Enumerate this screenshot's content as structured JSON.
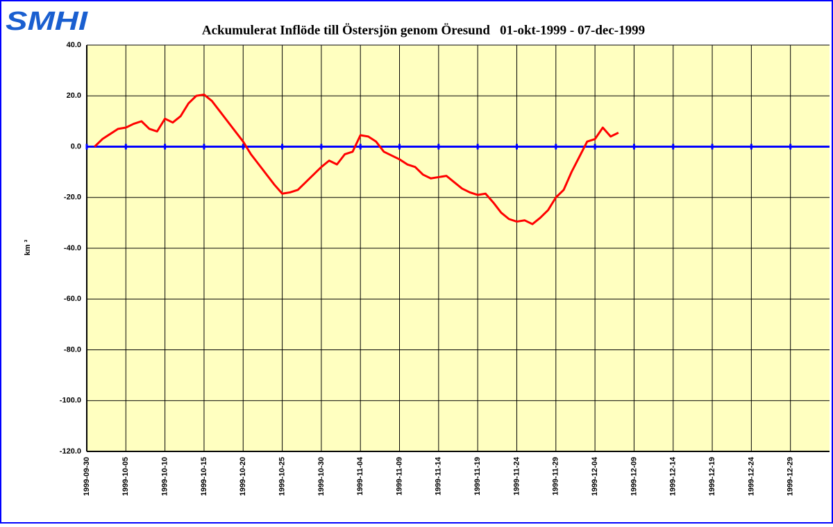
{
  "chart_data": {
    "type": "line",
    "logo": "SMHI",
    "title": "Ackumulerat Inflöde till Östersjön genom Öresund   01-okt-1999 - 07-dec-1999",
    "ylabel": "km ³",
    "x": [
      "1999-10-01",
      "1999-10-02",
      "1999-10-03",
      "1999-10-04",
      "1999-10-05",
      "1999-10-06",
      "1999-10-07",
      "1999-10-08",
      "1999-10-09",
      "1999-10-10",
      "1999-10-11",
      "1999-10-12",
      "1999-10-13",
      "1999-10-14",
      "1999-10-15",
      "1999-10-16",
      "1999-10-17",
      "1999-10-18",
      "1999-10-19",
      "1999-10-20",
      "1999-10-21",
      "1999-10-22",
      "1999-10-23",
      "1999-10-24",
      "1999-10-25",
      "1999-10-26",
      "1999-10-27",
      "1999-10-28",
      "1999-10-29",
      "1999-10-30",
      "1999-10-31",
      "1999-11-01",
      "1999-11-02",
      "1999-11-03",
      "1999-11-04",
      "1999-11-05",
      "1999-11-06",
      "1999-11-07",
      "1999-11-08",
      "1999-11-09",
      "1999-11-10",
      "1999-11-11",
      "1999-11-12",
      "1999-11-13",
      "1999-11-14",
      "1999-11-15",
      "1999-11-16",
      "1999-11-17",
      "1999-11-18",
      "1999-11-19",
      "1999-11-20",
      "1999-11-21",
      "1999-11-22",
      "1999-11-23",
      "1999-11-24",
      "1999-11-25",
      "1999-11-26",
      "1999-11-27",
      "1999-11-28",
      "1999-11-29",
      "1999-11-30",
      "1999-12-01",
      "1999-12-02",
      "1999-12-03",
      "1999-12-04",
      "1999-12-05",
      "1999-12-06",
      "1999-12-07"
    ],
    "series": [
      {
        "color": "#ff0000",
        "values": [
          0,
          3,
          5,
          7,
          7.5,
          9,
          10,
          7,
          6,
          11,
          9.5,
          12,
          17,
          20,
          20.5,
          18,
          14,
          10,
          6,
          2,
          -3,
          -7,
          -11,
          -15,
          -18.5,
          -18,
          -17,
          -14,
          -11,
          -8,
          -5.5,
          -7,
          -3,
          -2,
          4.5,
          4,
          2,
          -2,
          -3.5,
          -5,
          -7,
          -8,
          -11,
          -12.5,
          -12,
          -11.5,
          -14,
          -16.5,
          -18,
          -19,
          -18.5,
          -22,
          -26,
          -28.5,
          -29.5,
          -29,
          -30.5,
          -28,
          -25,
          -20,
          -17,
          -10,
          -4,
          2,
          3,
          7.5,
          4,
          5.5
        ]
      }
    ],
    "xlim": [
      "1999-09-30",
      "2000-01-03"
    ],
    "xticks": [
      "1999-09-30",
      "1999-10-05",
      "1999-10-10",
      "1999-10-15",
      "1999-10-20",
      "1999-10-25",
      "1999-10-30",
      "1999-11-04",
      "1999-11-09",
      "1999-11-14",
      "1999-11-19",
      "1999-11-24",
      "1999-11-29",
      "1999-12-04",
      "1999-12-09",
      "1999-12-14",
      "1999-12-19",
      "1999-12-24",
      "1999-12-29"
    ],
    "ylim": [
      -120,
      40
    ],
    "yticks": [
      {
        "value": 40,
        "label": "40.0"
      },
      {
        "value": 20,
        "label": "20.0"
      },
      {
        "value": 0,
        "label": "0.0"
      },
      {
        "value": -20,
        "label": "-20.0"
      },
      {
        "value": -40,
        "label": "-40.0"
      },
      {
        "value": -60,
        "label": "-60.0"
      },
      {
        "value": -80,
        "label": "-80.0"
      },
      {
        "value": -100,
        "label": "-100.0"
      },
      {
        "value": -120,
        "label": "-120.0"
      }
    ],
    "grid": true,
    "background": "#ffffc0",
    "zero_line_color": "#0000ff"
  }
}
